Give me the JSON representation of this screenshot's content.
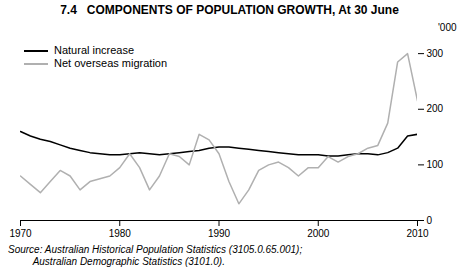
{
  "chart_data": {
    "type": "line",
    "title": "7.4   COMPONENTS OF POPULATION GROWTH, At 30 June",
    "ylabel": "'000",
    "caption": [
      "Source: Australian Historical Population Statistics (3105.0.65.001);",
      "         Australian Demographic Statistics (3101.0)."
    ],
    "x": [
      1970,
      1971,
      1972,
      1973,
      1974,
      1975,
      1976,
      1977,
      1978,
      1979,
      1980,
      1981,
      1982,
      1983,
      1984,
      1985,
      1986,
      1987,
      1988,
      1989,
      1990,
      1991,
      1992,
      1993,
      1994,
      1995,
      1996,
      1997,
      1998,
      1999,
      2000,
      2001,
      2002,
      2003,
      2004,
      2005,
      2006,
      2007,
      2008,
      2009,
      2010
    ],
    "series": [
      {
        "name": "Natural increase",
        "color": "#000000",
        "values": [
          160,
          152,
          146,
          142,
          136,
          130,
          126,
          122,
          120,
          118,
          118,
          120,
          122,
          120,
          118,
          120,
          122,
          124,
          126,
          130,
          132,
          132,
          130,
          128,
          126,
          124,
          122,
          120,
          118,
          118,
          118,
          116,
          116,
          118,
          120,
          120,
          118,
          122,
          130,
          152,
          155
        ]
      },
      {
        "name": "Net overseas migration",
        "color": "#b0b0b0",
        "values": [
          80,
          65,
          50,
          70,
          90,
          80,
          55,
          70,
          75,
          80,
          95,
          120,
          95,
          55,
          80,
          120,
          115,
          100,
          155,
          145,
          120,
          70,
          30,
          55,
          90,
          100,
          105,
          95,
          80,
          95,
          95,
          115,
          105,
          115,
          120,
          130,
          135,
          175,
          285,
          300,
          215
        ]
      }
    ],
    "xlim": [
      1970,
      2010
    ],
    "ylim": [
      0,
      320
    ],
    "xticks": [
      1970,
      1980,
      1990,
      2000,
      2010
    ],
    "yticks": [
      0,
      100,
      200,
      300
    ],
    "grid": false,
    "legend": "upper left"
  }
}
